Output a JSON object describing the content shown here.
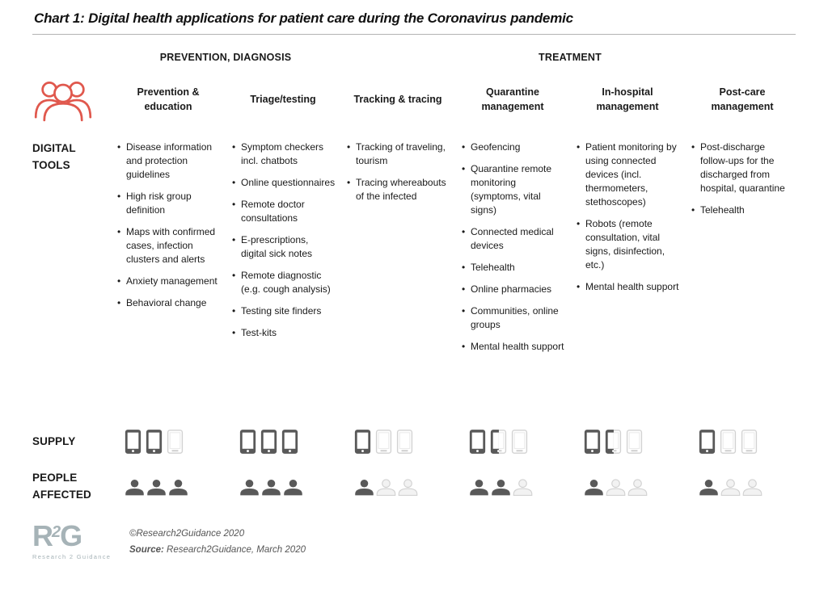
{
  "title": "Chart 1: Digital health applications for patient care during the Coronavirus pandemic",
  "section_headers": {
    "prevention": "PREVENTION, DIAGNOSIS",
    "treatment": "TREATMENT"
  },
  "row_labels": {
    "tools": "DIGITAL TOOLS",
    "supply": "SUPPLY",
    "people": "PEOPLE AFFECTED"
  },
  "chart_data": {
    "type": "table",
    "title": "Chart 1: Digital health applications for patient care during the Coronavirus pandemic",
    "icon_scale_max": 3,
    "rows": [
      "DIGITAL TOOLS",
      "SUPPLY",
      "PEOPLE AFFECTED"
    ],
    "groups": [
      {
        "label": "PREVENTION, DIAGNOSIS",
        "columns": [
          "Prevention & education",
          "Triage/testing",
          "Tracking & tracing"
        ]
      },
      {
        "label": "TREATMENT",
        "columns": [
          "Quarantine management",
          "In-hospital management",
          "Post-care management"
        ]
      }
    ],
    "columns": [
      {
        "header": "Prevention & education",
        "group": "PREVENTION, DIAGNOSIS",
        "digital_tools": [
          "Disease information and protection guidelines",
          "High risk group definition",
          "Maps with confirmed cases, infection clusters and alerts",
          "Anxiety management",
          "Behavioral change"
        ],
        "supply_icons": [
          "dark",
          "dark",
          "light"
        ],
        "supply_level": 2,
        "people_icons": [
          "dark",
          "dark",
          "dark"
        ],
        "people_level": 3
      },
      {
        "header": "Triage/testing",
        "group": "PREVENTION, DIAGNOSIS",
        "digital_tools": [
          "Symptom checkers incl. chatbots",
          "Online questionnaires",
          "Remote doctor consultations",
          "E-prescriptions, digital sick notes",
          "Remote diagnostic (e.g. cough analysis)",
          "Testing site finders",
          "Test-kits"
        ],
        "supply_icons": [
          "dark",
          "dark",
          "dark"
        ],
        "supply_level": 3,
        "people_icons": [
          "dark",
          "dark",
          "dark"
        ],
        "people_level": 3
      },
      {
        "header": "Tracking & tracing",
        "group": "PREVENTION, DIAGNOSIS",
        "digital_tools": [
          "Tracking of traveling, tourism",
          "Tracing whereabouts of the infected"
        ],
        "supply_icons": [
          "dark",
          "light",
          "light"
        ],
        "supply_level": 1,
        "people_icons": [
          "dark",
          "light",
          "light"
        ],
        "people_level": 1
      },
      {
        "header": "Quarantine management",
        "group": "TREATMENT",
        "digital_tools": [
          "Geofencing",
          "Quarantine remote monitoring (symptoms, vital signs)",
          "Connected medical devices",
          "Telehealth",
          "Online pharmacies",
          "Communities, online groups",
          "Mental health support"
        ],
        "supply_icons": [
          "dark",
          "half",
          "light"
        ],
        "supply_level": 1.5,
        "people_icons": [
          "dark",
          "dark",
          "light"
        ],
        "people_level": 2
      },
      {
        "header": "In-hospital management",
        "group": "TREATMENT",
        "digital_tools": [
          "Patient monitoring by using connected devices (incl. thermometers, stethoscopes)",
          "Robots (remote consultation, vital signs, disinfection, etc.)",
          "Mental health support"
        ],
        "supply_icons": [
          "dark",
          "half",
          "light"
        ],
        "supply_level": 1.5,
        "people_icons": [
          "dark",
          "light",
          "light"
        ],
        "people_level": 1
      },
      {
        "header": "Post-care management",
        "group": "TREATMENT",
        "digital_tools": [
          "Post-discharge follow-ups for the discharged from hospital, quarantine",
          "Telehealth"
        ],
        "supply_icons": [
          "dark",
          "light",
          "light"
        ],
        "supply_level": 1,
        "people_icons": [
          "dark",
          "light",
          "light"
        ],
        "people_level": 1
      }
    ]
  },
  "footer": {
    "logo_r": "R",
    "logo_2": "2",
    "logo_g": "G",
    "logo_subtext": "Research 2 Guidance",
    "copyright": "©Research2Guidance 2020",
    "source_label": "Source:",
    "source_text": " Research2Guidance, March 2020"
  },
  "colors": {
    "accent_red": "#e0584d",
    "icon_dark": "#595959",
    "icon_light": "#d2d2d2",
    "icon_screen_light": "#e8e8e8",
    "person_light_fill": "#f2f2f2",
    "logo": "#a6b3b7",
    "rule": "#b3b3b3",
    "text": "#1a1a1a",
    "footer_text": "#555555"
  }
}
